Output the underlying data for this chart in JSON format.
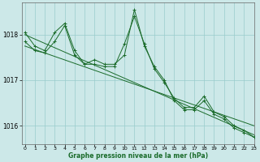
{
  "background_color": "#cce8e8",
  "grid_color": "#99cccc",
  "line_color": "#1a6b2a",
  "xlabel": "Graphe pression niveau de la mer (hPa)",
  "ylim": [
    1015.6,
    1018.7
  ],
  "xlim": [
    -0.3,
    23
  ],
  "yticks": [
    1016,
    1017,
    1018
  ],
  "xticks": [
    0,
    1,
    2,
    3,
    4,
    5,
    6,
    7,
    8,
    9,
    10,
    11,
    12,
    13,
    14,
    15,
    16,
    17,
    18,
    19,
    20,
    21,
    22,
    23
  ],
  "series": [
    {
      "markers": true,
      "x": [
        0,
        1,
        2,
        3,
        4,
        5,
        6,
        7,
        8,
        9,
        10,
        11,
        12,
        13,
        14,
        15,
        16,
        17,
        18,
        19,
        20,
        21,
        22,
        23
      ],
      "y": [
        1018.05,
        1017.75,
        1017.65,
        1018.05,
        1018.25,
        1017.65,
        1017.35,
        1017.45,
        1017.35,
        1017.35,
        1017.55,
        1018.55,
        1017.75,
        1017.3,
        1017.0,
        1016.55,
        1016.35,
        1016.35,
        1016.55,
        1016.25,
        1016.15,
        1015.95,
        1015.85,
        1015.75
      ]
    },
    {
      "markers": true,
      "x": [
        0,
        1,
        2,
        3,
        4,
        5,
        6,
        7,
        8,
        9,
        10,
        11,
        12,
        13,
        14,
        15,
        16,
        17,
        18,
        19,
        20,
        21,
        22,
        23
      ],
      "y": [
        1017.85,
        1017.65,
        1017.6,
        1017.85,
        1018.2,
        1017.55,
        1017.35,
        1017.35,
        1017.3,
        1017.3,
        1017.8,
        1018.4,
        1017.8,
        1017.25,
        1016.95,
        1016.6,
        1016.4,
        1016.4,
        1016.65,
        1016.3,
        1016.2,
        1016.0,
        1015.9,
        1015.75
      ]
    },
    {
      "markers": false,
      "x": [
        0,
        23
      ],
      "y": [
        1018.0,
        1015.8
      ]
    },
    {
      "markers": false,
      "x": [
        0,
        23
      ],
      "y": [
        1017.75,
        1016.0
      ]
    }
  ]
}
